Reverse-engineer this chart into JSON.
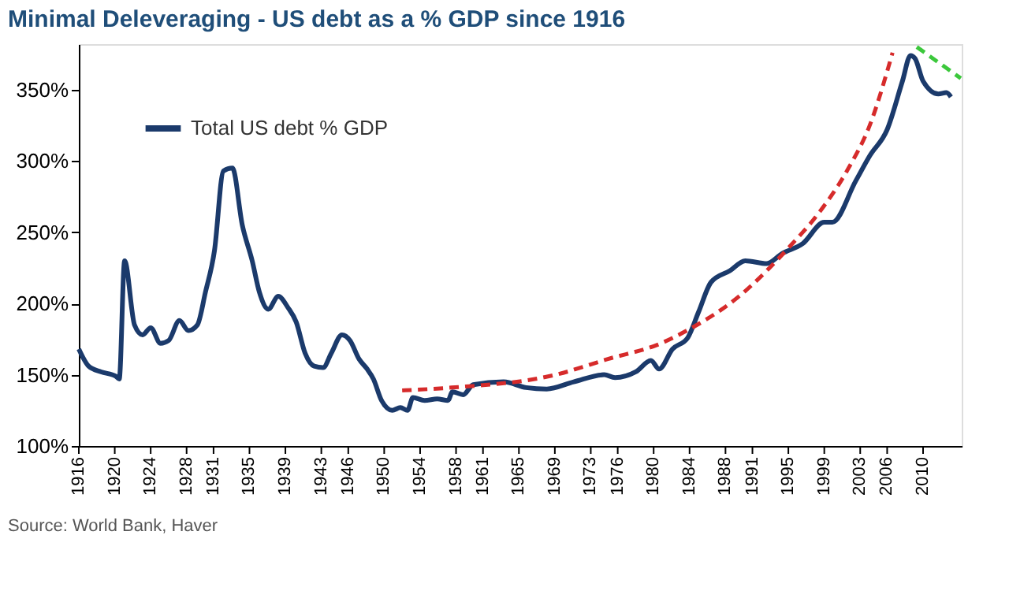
{
  "chart_data": {
    "type": "line",
    "title": "Minimal Deleveraging - US debt as a % GDP since 1916",
    "annotations": [
      "Source: World Bank, Haver"
    ],
    "legend": "top left",
    "grid": false,
    "marker": "none",
    "xlim": [
      1916,
      2014.3
    ],
    "ylim": [
      100,
      382
    ],
    "xticks": [
      1916,
      1920,
      1924,
      1928,
      1931,
      1935,
      1939,
      1943,
      1946,
      1950,
      1954,
      1958,
      1961,
      1965,
      1969,
      1973,
      1976,
      1980,
      1984,
      1988,
      1991,
      1995,
      1999,
      2003,
      2006,
      2010
    ],
    "yticks": [
      {
        "value": 100,
        "label": "100%"
      },
      {
        "value": 150,
        "label": "150%"
      },
      {
        "value": 200,
        "label": "200%"
      },
      {
        "value": 250,
        "label": "250%"
      },
      {
        "value": 300,
        "label": "300%"
      },
      {
        "value": 350,
        "label": "350%"
      }
    ],
    "series": [
      {
        "name": "Total US debt % GDP",
        "color": "#1b3a6b",
        "line_style": "solid",
        "x": [
          1916,
          1917.1,
          1918.5,
          1920.1,
          1920.5,
          1921.1,
          1922.2,
          1923.1,
          1924.0,
          1925.1,
          1926.0,
          1927.2,
          1928.2,
          1929.2,
          1930.1,
          1931.1,
          1932.1,
          1933.1,
          1934.2,
          1935.3,
          1936.1,
          1937.1,
          1938.2,
          1939.3,
          1940.2,
          1941.2,
          1942.2,
          1943.2,
          1944.1,
          1945.3,
          1946.2,
          1947.2,
          1948.1,
          1948.8,
          1949.7,
          1950.9,
          1951.8,
          1952.6,
          1953.2,
          1954.5,
          1955.9,
          1957.1,
          1957.6,
          1958.8,
          1959.9,
          1963.3,
          1965.8,
          1968.1,
          1971.1,
          1974.5,
          1975.7,
          1978.0,
          1979.7,
          1980.6,
          1982.1,
          1983.8,
          1985.0,
          1986.4,
          1988.5,
          1990.2,
          1992.6,
          1994.3,
          1996.6,
          1999.0,
          1999.9,
          2002.5,
          2004.1,
          2006.0,
          2007.7,
          2008.6,
          2009.1,
          2010.0,
          2011.7,
          2012.6,
          2013.1
        ],
        "values": [
          168,
          156,
          152,
          149,
          147,
          230,
          185,
          178,
          183,
          172,
          174,
          188,
          181,
          185,
          208,
          237,
          293,
          295,
          255,
          230,
          208,
          196,
          205,
          197,
          187,
          165,
          156,
          155,
          165,
          178,
          174,
          161,
          154,
          147,
          132,
          125,
          127,
          125,
          134,
          132,
          133,
          132,
          138,
          136,
          143,
          145,
          141,
          140,
          145,
          150,
          148,
          152,
          160,
          154,
          168,
          176,
          194,
          215,
          223,
          230,
          228,
          235,
          242,
          257,
          257,
          286,
          304,
          322,
          356,
          374,
          372,
          356,
          347,
          348,
          345
        ]
      },
      {
        "color": "#d62b2b",
        "line_style": "dashed",
        "x": [
          1952.0,
          1957.5,
          1969.1,
          1974.9,
          1980.8,
          1983.7,
          1989.5,
          1995.3,
          1998.2,
          2001.7,
          2004.0,
          2006.6
        ],
        "values": [
          139,
          141,
          150,
          161,
          172,
          181,
          205,
          241,
          262,
          295,
          324,
          376
        ]
      },
      {
        "color": "#3cc83c",
        "line_style": "dashed",
        "x": [
          2009.3,
          2014.2
        ],
        "values": [
          380,
          358
        ]
      }
    ]
  }
}
